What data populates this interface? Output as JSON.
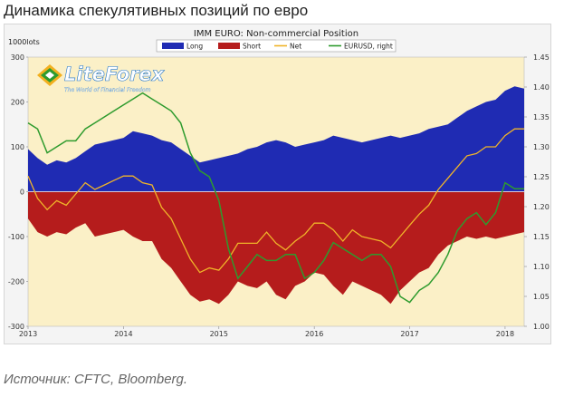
{
  "page": {
    "heading": "Динамика спекулятивных позиций по евро",
    "source": "Источник: CFTC, Bloomberg."
  },
  "watermark": {
    "brand": "LiteForex",
    "tagline": "The World of Financial Freedom"
  },
  "chart_data": {
    "type": "area",
    "title": "IMM EURO: Non-commercial  Position",
    "y_unit_label": "1000lots",
    "x_ticks": [
      "2013",
      "2014",
      "2015",
      "2016",
      "2017",
      "2018"
    ],
    "y_left": {
      "min": -300,
      "max": 300,
      "ticks": [
        300,
        200,
        100,
        0,
        -100,
        -200,
        -300
      ]
    },
    "y_right": {
      "min": 1.0,
      "max": 1.45,
      "ticks": [
        "1.45",
        "1.40",
        "1.35",
        "1.30",
        "1.25",
        "1.20",
        "1.15",
        "1.10",
        "1.05",
        "1.00"
      ]
    },
    "x_range": [
      2013.0,
      2018.2
    ],
    "legend": {
      "placement": "top-center"
    },
    "grid": false,
    "background_color": "#fbf0c7",
    "series": [
      {
        "name": "Long",
        "axis": "left",
        "color": "#1f2bb3",
        "x": [
          2013.0,
          2013.1,
          2013.2,
          2013.3,
          2013.4,
          2013.5,
          2013.6,
          2013.7,
          2013.8,
          2013.9,
          2014.0,
          2014.1,
          2014.2,
          2014.3,
          2014.4,
          2014.5,
          2014.6,
          2014.7,
          2014.8,
          2014.9,
          2015.0,
          2015.1,
          2015.2,
          2015.3,
          2015.4,
          2015.5,
          2015.6,
          2015.7,
          2015.8,
          2015.9,
          2016.0,
          2016.1,
          2016.2,
          2016.3,
          2016.4,
          2016.5,
          2016.6,
          2016.7,
          2016.8,
          2016.9,
          2017.0,
          2017.1,
          2017.2,
          2017.3,
          2017.4,
          2017.5,
          2017.6,
          2017.7,
          2017.8,
          2017.9,
          2018.0,
          2018.1,
          2018.2
        ],
        "values": [
          95,
          75,
          60,
          70,
          65,
          75,
          90,
          105,
          110,
          115,
          120,
          135,
          130,
          125,
          115,
          110,
          95,
          80,
          65,
          70,
          75,
          80,
          85,
          95,
          100,
          110,
          115,
          110,
          100,
          105,
          110,
          115,
          125,
          120,
          115,
          110,
          115,
          120,
          125,
          120,
          125,
          130,
          140,
          145,
          150,
          165,
          180,
          190,
          200,
          205,
          225,
          235,
          230
        ]
      },
      {
        "name": "Short",
        "axis": "left",
        "color": "#b51c1c",
        "x": [
          2013.0,
          2013.1,
          2013.2,
          2013.3,
          2013.4,
          2013.5,
          2013.6,
          2013.7,
          2013.8,
          2013.9,
          2014.0,
          2014.1,
          2014.2,
          2014.3,
          2014.4,
          2014.5,
          2014.6,
          2014.7,
          2014.8,
          2014.9,
          2015.0,
          2015.1,
          2015.2,
          2015.3,
          2015.4,
          2015.5,
          2015.6,
          2015.7,
          2015.8,
          2015.9,
          2016.0,
          2016.1,
          2016.2,
          2016.3,
          2016.4,
          2016.5,
          2016.6,
          2016.7,
          2016.8,
          2016.9,
          2017.0,
          2017.1,
          2017.2,
          2017.3,
          2017.4,
          2017.5,
          2017.6,
          2017.7,
          2017.8,
          2017.9,
          2018.0,
          2018.1,
          2018.2
        ],
        "values": [
          -60,
          -90,
          -100,
          -90,
          -95,
          -80,
          -70,
          -100,
          -95,
          -90,
          -85,
          -100,
          -110,
          -110,
          -150,
          -170,
          -200,
          -230,
          -245,
          -240,
          -250,
          -230,
          -200,
          -210,
          -215,
          -200,
          -230,
          -240,
          -210,
          -200,
          -180,
          -185,
          -210,
          -230,
          -200,
          -210,
          -220,
          -230,
          -250,
          -220,
          -200,
          -180,
          -170,
          -140,
          -120,
          -110,
          -100,
          -105,
          -100,
          -105,
          -100,
          -95,
          -90
        ]
      },
      {
        "name": "Net",
        "axis": "left",
        "color": "#f0b429",
        "x": [
          2013.0,
          2013.1,
          2013.2,
          2013.3,
          2013.4,
          2013.5,
          2013.6,
          2013.7,
          2013.8,
          2013.9,
          2014.0,
          2014.1,
          2014.2,
          2014.3,
          2014.4,
          2014.5,
          2014.6,
          2014.7,
          2014.8,
          2014.9,
          2015.0,
          2015.1,
          2015.2,
          2015.3,
          2015.4,
          2015.5,
          2015.6,
          2015.7,
          2015.8,
          2015.9,
          2016.0,
          2016.1,
          2016.2,
          2016.3,
          2016.4,
          2016.5,
          2016.6,
          2016.7,
          2016.8,
          2016.9,
          2017.0,
          2017.1,
          2017.2,
          2017.3,
          2017.4,
          2017.5,
          2017.6,
          2017.7,
          2017.8,
          2017.9,
          2018.0,
          2018.1,
          2018.2
        ],
        "values": [
          35,
          -15,
          -40,
          -20,
          -30,
          -5,
          20,
          5,
          15,
          25,
          35,
          35,
          20,
          15,
          -35,
          -60,
          -105,
          -150,
          -180,
          -170,
          -175,
          -150,
          -115,
          -115,
          -115,
          -90,
          -115,
          -130,
          -110,
          -95,
          -70,
          -70,
          -85,
          -110,
          -85,
          -100,
          -105,
          -110,
          -125,
          -100,
          -75,
          -50,
          -30,
          5,
          30,
          55,
          80,
          85,
          100,
          100,
          125,
          140,
          140
        ]
      },
      {
        "name": "EURUSD, right",
        "axis": "right",
        "color": "#2e9b2e",
        "x": [
          2013.0,
          2013.1,
          2013.2,
          2013.3,
          2013.4,
          2013.5,
          2013.6,
          2013.7,
          2013.8,
          2013.9,
          2014.0,
          2014.1,
          2014.2,
          2014.3,
          2014.4,
          2014.5,
          2014.6,
          2014.7,
          2014.8,
          2014.9,
          2015.0,
          2015.1,
          2015.2,
          2015.3,
          2015.4,
          2015.5,
          2015.6,
          2015.7,
          2015.8,
          2015.9,
          2016.0,
          2016.1,
          2016.2,
          2016.3,
          2016.4,
          2016.5,
          2016.6,
          2016.7,
          2016.8,
          2016.9,
          2017.0,
          2017.1,
          2017.2,
          2017.3,
          2017.4,
          2017.5,
          2017.6,
          2017.7,
          2017.8,
          2017.9,
          2018.0,
          2018.1,
          2018.2
        ],
        "values": [
          1.34,
          1.33,
          1.29,
          1.3,
          1.31,
          1.31,
          1.33,
          1.34,
          1.35,
          1.36,
          1.37,
          1.38,
          1.39,
          1.38,
          1.37,
          1.36,
          1.34,
          1.29,
          1.26,
          1.25,
          1.21,
          1.13,
          1.08,
          1.1,
          1.12,
          1.11,
          1.11,
          1.12,
          1.12,
          1.08,
          1.09,
          1.11,
          1.14,
          1.13,
          1.12,
          1.11,
          1.12,
          1.12,
          1.1,
          1.05,
          1.04,
          1.06,
          1.07,
          1.09,
          1.12,
          1.16,
          1.18,
          1.19,
          1.17,
          1.19,
          1.24,
          1.23,
          1.23
        ]
      }
    ]
  }
}
